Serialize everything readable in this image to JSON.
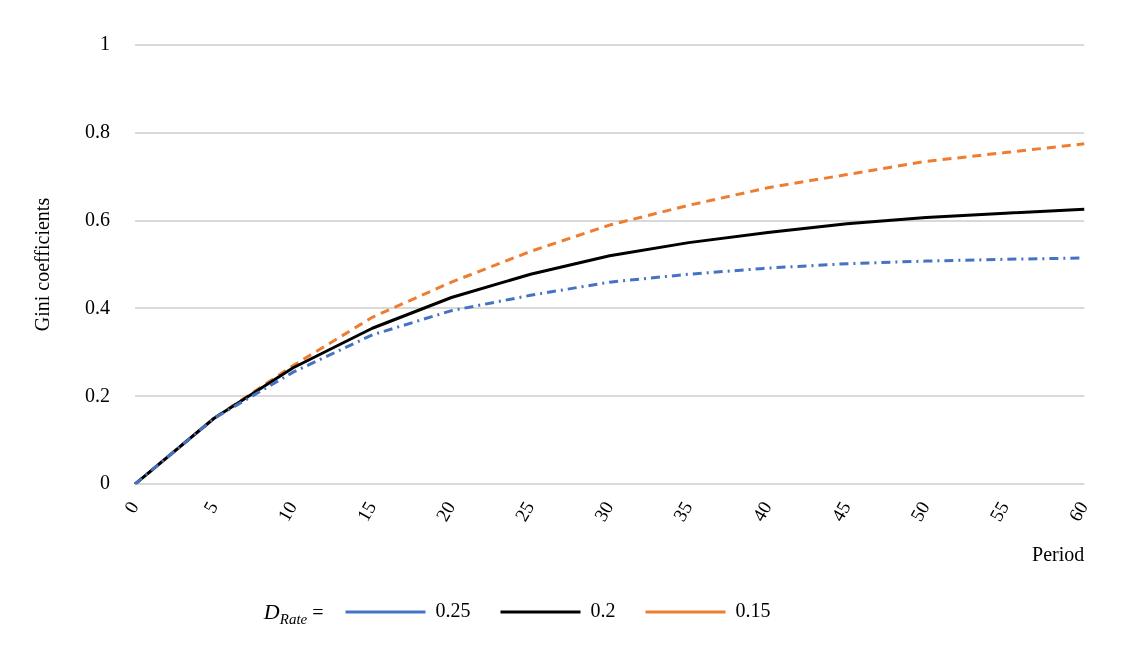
{
  "chart_data": {
    "type": "line",
    "xlabel": "Period",
    "ylabel": "Gini coefficients",
    "legend_title": "D$_{Rate}$ =",
    "categories": [
      "0",
      "5",
      "10",
      "15",
      "20",
      "25",
      "30",
      "35",
      "40",
      "45",
      "50",
      "55",
      "60"
    ],
    "ylim": [
      0,
      1
    ],
    "yticks": [
      0,
      0.2,
      0.4,
      0.6,
      0.8,
      1
    ],
    "grid": "y",
    "legend": "bottom",
    "marker": "none",
    "series": [
      {
        "name": "0.25",
        "color": "#4472c4",
        "line_style": "dashdot",
        "values": [
          0,
          0.15,
          0.255,
          0.34,
          0.395,
          0.43,
          0.46,
          0.478,
          0.492,
          0.502,
          0.508,
          0.512,
          0.515
        ]
      },
      {
        "name": "0.2",
        "color": "#000000",
        "line_style": "solid",
        "values": [
          0,
          0.15,
          0.265,
          0.355,
          0.425,
          0.478,
          0.52,
          0.55,
          0.573,
          0.593,
          0.607,
          0.617,
          0.626
        ]
      },
      {
        "name": "0.15",
        "color": "#ed7d31",
        "line_style": "dashed",
        "values": [
          0,
          0.15,
          0.27,
          0.38,
          0.46,
          0.53,
          0.59,
          0.635,
          0.675,
          0.705,
          0.735,
          0.755,
          0.775
        ]
      }
    ]
  }
}
